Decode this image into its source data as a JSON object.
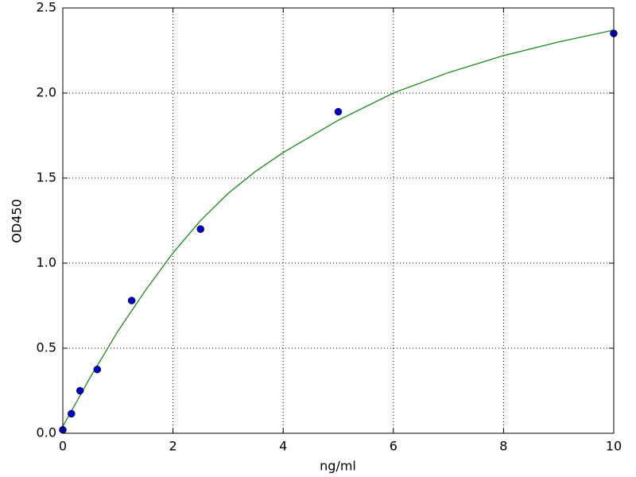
{
  "chart_data": {
    "type": "scatter",
    "xlabel": "ng/ml",
    "ylabel": "OD450",
    "xlim": [
      0,
      10
    ],
    "xticks": [
      0,
      2,
      4,
      6,
      8,
      10
    ],
    "ylim": [
      0,
      2.5
    ],
    "yticks": [
      {
        "value": 0,
        "label": "0.0"
      },
      {
        "value": 0.5,
        "label": "0.5"
      },
      {
        "value": 1,
        "label": "1.0"
      },
      {
        "value": 1.5,
        "label": "1.5"
      },
      {
        "value": 2,
        "label": "2.0"
      },
      {
        "value": 2.5,
        "label": "2.5"
      }
    ],
    "grid": true,
    "series": [
      {
        "type": "scatter",
        "color": "#0000bf",
        "x": [
          0,
          0.156,
          0.3125,
          0.625,
          1.25,
          2.5,
          5,
          10
        ],
        "values": [
          0.02,
          0.115,
          0.25,
          0.375,
          0.78,
          1.2,
          1.89,
          2.35
        ]
      },
      {
        "type": "line",
        "color": "#1a8a1a",
        "x": [
          0,
          0.5,
          1,
          1.5,
          2,
          2.5,
          3,
          3.5,
          4,
          5,
          6,
          7,
          8,
          9,
          10
        ],
        "values": [
          0.04,
          0.33,
          0.6,
          0.84,
          1.06,
          1.25,
          1.41,
          1.54,
          1.65,
          1.84,
          2.0,
          2.12,
          2.22,
          2.3,
          2.37
        ]
      }
    ]
  }
}
